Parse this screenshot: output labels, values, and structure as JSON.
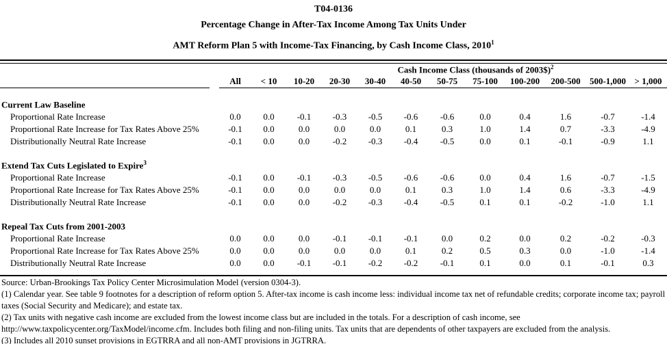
{
  "title": {
    "code": "T04-0136",
    "line2": "Percentage Change in After-Tax Income Among Tax Units Under",
    "line3": "AMT Reform Plan 5 with Income-Tax Financing, by Cash Income Class, 2010",
    "line3_sup": "1"
  },
  "table": {
    "group_header": "Cash Income Class (thousands of 2003$)",
    "group_header_sup": "2",
    "columns": [
      "All",
      "< 10",
      "10-20",
      "20-30",
      "30-40",
      "40-50",
      "50-75",
      "75-100",
      "100-200",
      "200-500",
      "500-1,000",
      "> 1,000"
    ],
    "sections": [
      {
        "label": "Current Law Baseline",
        "sup": "",
        "rows": [
          {
            "label": "Proportional Rate Increase",
            "values": [
              "0.0",
              "0.0",
              "-0.1",
              "-0.3",
              "-0.5",
              "-0.6",
              "-0.6",
              "0.0",
              "0.4",
              "1.6",
              "-0.7",
              "-1.4"
            ]
          },
          {
            "label": "Proportional Rate Increase for Tax Rates Above 25%",
            "values": [
              "-0.1",
              "0.0",
              "0.0",
              "0.0",
              "0.0",
              "0.1",
              "0.3",
              "1.0",
              "1.4",
              "0.7",
              "-3.3",
              "-4.9"
            ]
          },
          {
            "label": "Distributionally Neutral Rate Increase",
            "values": [
              "-0.1",
              "0.0",
              "0.0",
              "-0.2",
              "-0.3",
              "-0.4",
              "-0.5",
              "0.0",
              "0.1",
              "-0.1",
              "-0.9",
              "1.1"
            ]
          }
        ]
      },
      {
        "label": "Extend Tax Cuts Legislated to Expire",
        "sup": "3",
        "rows": [
          {
            "label": "Proportional Rate Increase",
            "values": [
              "-0.1",
              "0.0",
              "-0.1",
              "-0.3",
              "-0.5",
              "-0.6",
              "-0.6",
              "0.0",
              "0.4",
              "1.6",
              "-0.7",
              "-1.5"
            ]
          },
          {
            "label": "Proportional Rate Increase for Tax Rates Above 25%",
            "values": [
              "-0.1",
              "0.0",
              "0.0",
              "0.0",
              "0.0",
              "0.1",
              "0.3",
              "1.0",
              "1.4",
              "0.6",
              "-3.3",
              "-4.9"
            ]
          },
          {
            "label": "Distributionally Neutral Rate Increase",
            "values": [
              "-0.1",
              "0.0",
              "0.0",
              "-0.2",
              "-0.3",
              "-0.4",
              "-0.5",
              "0.1",
              "0.1",
              "-0.2",
              "-1.0",
              "1.1"
            ]
          }
        ]
      },
      {
        "label": "Repeal Tax Cuts from 2001-2003",
        "sup": "",
        "rows": [
          {
            "label": "Proportional Rate Increase",
            "values": [
              "0.0",
              "0.0",
              "0.0",
              "-0.1",
              "-0.1",
              "-0.1",
              "0.0",
              "0.2",
              "0.0",
              "0.2",
              "-0.2",
              "-0.3"
            ]
          },
          {
            "label": "Proportional Rate Increase for Tax Rates Above 25%",
            "values": [
              "0.0",
              "0.0",
              "0.0",
              "0.0",
              "0.0",
              "0.1",
              "0.2",
              "0.5",
              "0.3",
              "0.0",
              "-1.0",
              "-1.4"
            ]
          },
          {
            "label": "Distributionally Neutral Rate Increase",
            "values": [
              "0.0",
              "0.0",
              "-0.1",
              "-0.1",
              "-0.2",
              "-0.2",
              "-0.1",
              "0.1",
              "0.0",
              "0.1",
              "-0.1",
              "0.3"
            ]
          }
        ]
      }
    ]
  },
  "footnotes": [
    "Source: Urban-Brookings Tax Policy Center Microsimulation Model (version 0304-3).",
    "(1) Calendar year.  See table 9 footnotes for a description of reform option 5. After-tax income is cash income less: individual income tax net of refundable credits; corporate income tax; payroll taxes (Social Security and Medicare); and estate tax.",
    "(2) Tax units with negative cash income are excluded from the lowest income class but are included in the totals. For a description of cash income, see http://www.taxpolicycenter.org/TaxModel/income.cfm. Includes both filing and non-filing units.  Tax units that are dependents of other taxpayers are excluded from the analysis.",
    "(3) Includes all 2010 sunset provisions in EGTRRA and all non-AMT provisions in JGTRRA."
  ]
}
